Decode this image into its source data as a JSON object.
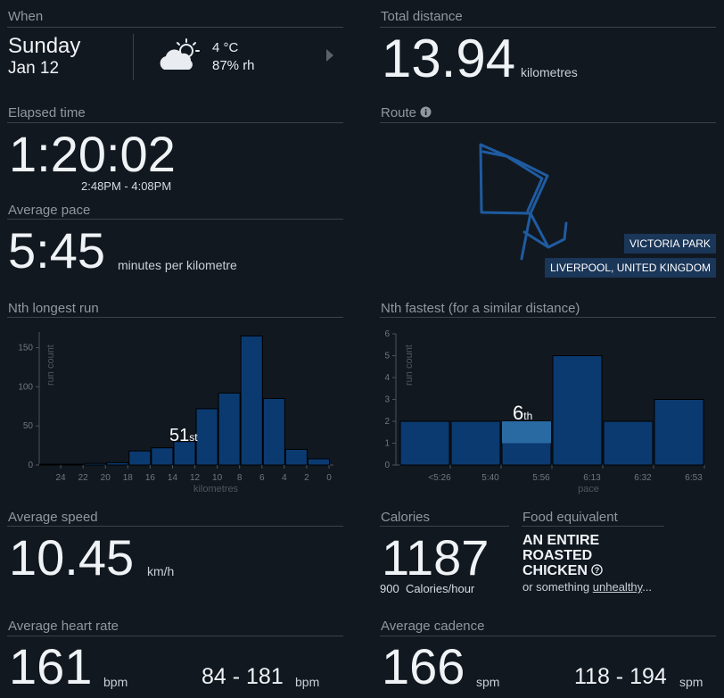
{
  "when": {
    "label": "When",
    "day": "Sunday",
    "date": "Jan 12",
    "temp": "4 °C",
    "humidity": "87% rh",
    "weather_icon": "partly-cloudy-icon"
  },
  "total_distance": {
    "label": "Total distance",
    "value": "13.94",
    "unit": "kilometres"
  },
  "elapsed_time": {
    "label": "Elapsed time",
    "value": "1:20:02",
    "range": "2:48PM - 4:08PM"
  },
  "route": {
    "label": "Route",
    "info_icon": "info-icon",
    "place": "VICTORIA PARK",
    "location": "LIVERPOOL, UNITED KINGDOM",
    "color": "#1f5ba0"
  },
  "average_pace": {
    "label": "Average pace",
    "value": "5:45",
    "unit": "minutes per kilometre"
  },
  "nth_longest": {
    "label": "Nth longest run",
    "rank": "51",
    "rank_suffix": "st",
    "chart_data": {
      "type": "bar",
      "ylabel": "run count",
      "xlabel": "kilometres",
      "ylim": [
        0,
        170
      ],
      "yticks": [
        0,
        50,
        100,
        150
      ],
      "xticks": [
        "24",
        "22",
        "20",
        "18",
        "16",
        "14",
        "12",
        "10",
        "8",
        "6",
        "4",
        "2",
        "0"
      ],
      "values": [
        1,
        1,
        2,
        3,
        18,
        22,
        30,
        72,
        92,
        165,
        85,
        20,
        8
      ],
      "highlight_index": 6
    }
  },
  "nth_fastest": {
    "label": "Nth fastest (for a similar distance)",
    "rank": "6",
    "rank_suffix": "th",
    "chart_data": {
      "type": "bar",
      "ylabel": "run count",
      "xlabel": "pace",
      "ylim": [
        0,
        6
      ],
      "yticks": [
        0,
        1,
        2,
        3,
        4,
        5,
        6
      ],
      "xticks": [
        "<5:26",
        "5:40",
        "5:56",
        "6:13",
        "6:32",
        "6:53"
      ],
      "values": [
        2,
        2,
        2,
        5,
        2,
        3
      ],
      "highlight_index": 2,
      "highlight_value": 1
    }
  },
  "average_speed": {
    "label": "Average speed",
    "value": "10.45",
    "unit": "km/h"
  },
  "calories": {
    "label": "Calories",
    "value": "1187",
    "rate_value": "900",
    "rate_unit": "Calories/hour"
  },
  "food": {
    "label": "Food equivalent",
    "line1": "AN ENTIRE",
    "line2": "ROASTED",
    "line3": "CHICKEN",
    "help_icon": "question-icon",
    "sub_prefix": "or something",
    "sub_link": "unhealthy",
    "sub_suffix": "..."
  },
  "heart_rate": {
    "label": "Average heart rate",
    "value": "161",
    "unit": "bpm",
    "range": "84 - 181",
    "range_unit": "bpm"
  },
  "cadence": {
    "label": "Average cadence",
    "value": "166",
    "unit": "spm",
    "range": "118 - 194",
    "range_unit": "spm"
  }
}
